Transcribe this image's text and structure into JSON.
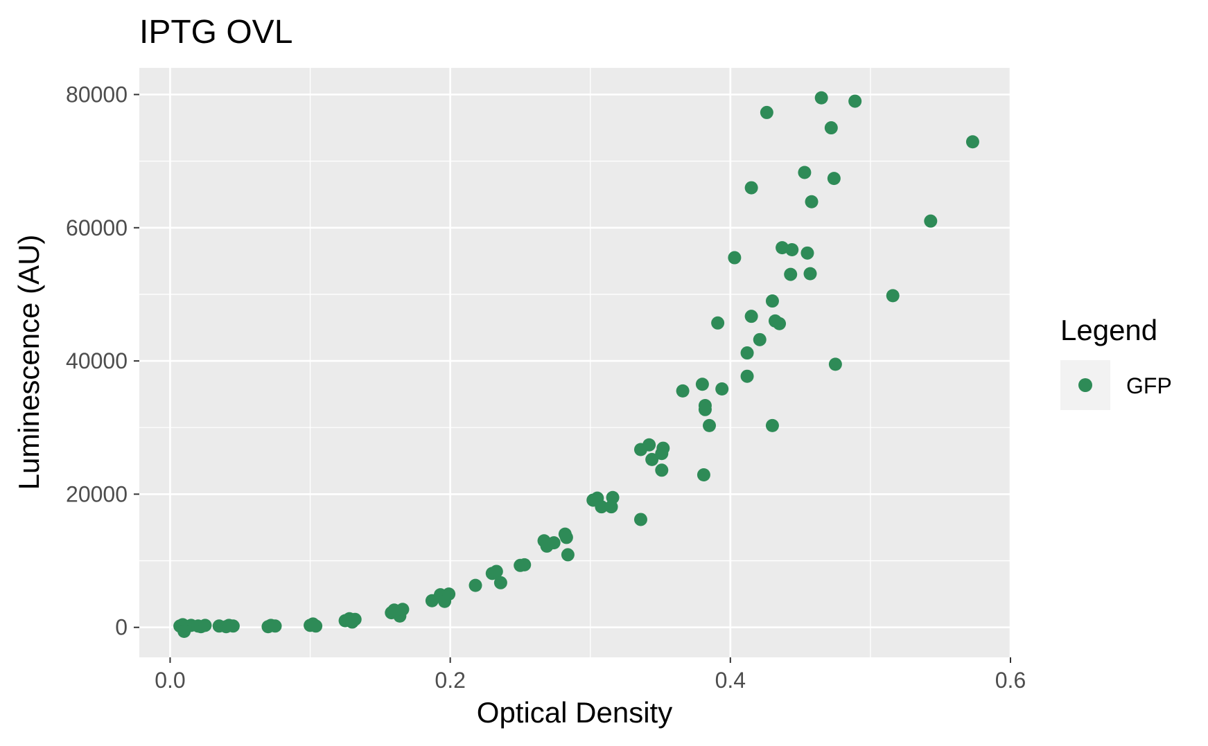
{
  "chart_data": {
    "type": "scatter",
    "title": "IPTG OVL",
    "xlabel": "Optical Density",
    "ylabel": "Luminescence (AU)",
    "xlim": [
      -0.022,
      0.6
    ],
    "ylim": [
      -4500,
      84000
    ],
    "x_ticks": [
      0.0,
      0.2,
      0.4,
      0.6
    ],
    "x_tick_labels": [
      "0.0",
      "0.2",
      "0.4",
      "0.6"
    ],
    "y_ticks": [
      0,
      20000,
      40000,
      60000,
      80000
    ],
    "y_tick_labels": [
      "0",
      "20000",
      "40000",
      "60000",
      "80000"
    ],
    "grid": true,
    "legend": {
      "title": "Legend",
      "position": "right"
    },
    "series": [
      {
        "name": "GFP",
        "color": "#2e8b57",
        "points": [
          [
            0.007,
            200
          ],
          [
            0.009,
            400
          ],
          [
            0.012,
            100
          ],
          [
            0.015,
            300
          ],
          [
            0.01,
            -600
          ],
          [
            0.02,
            200
          ],
          [
            0.022,
            100
          ],
          [
            0.025,
            300
          ],
          [
            0.035,
            200
          ],
          [
            0.04,
            100
          ],
          [
            0.042,
            300
          ],
          [
            0.045,
            200
          ],
          [
            0.07,
            100
          ],
          [
            0.072,
            300
          ],
          [
            0.075,
            200
          ],
          [
            0.1,
            300
          ],
          [
            0.102,
            500
          ],
          [
            0.104,
            200
          ],
          [
            0.125,
            1000
          ],
          [
            0.128,
            1300
          ],
          [
            0.13,
            800
          ],
          [
            0.132,
            1200
          ],
          [
            0.158,
            2200
          ],
          [
            0.16,
            2600
          ],
          [
            0.164,
            1700
          ],
          [
            0.166,
            2700
          ],
          [
            0.187,
            4000
          ],
          [
            0.193,
            4900
          ],
          [
            0.196,
            3900
          ],
          [
            0.199,
            5000
          ],
          [
            0.218,
            6300
          ],
          [
            0.23,
            8100
          ],
          [
            0.233,
            8400
          ],
          [
            0.236,
            6700
          ],
          [
            0.25,
            9300
          ],
          [
            0.253,
            9400
          ],
          [
            0.267,
            13000
          ],
          [
            0.269,
            12200
          ],
          [
            0.274,
            12700
          ],
          [
            0.282,
            14000
          ],
          [
            0.283,
            13500
          ],
          [
            0.284,
            10900
          ],
          [
            0.302,
            19100
          ],
          [
            0.305,
            19400
          ],
          [
            0.308,
            18100
          ],
          [
            0.315,
            18100
          ],
          [
            0.316,
            19500
          ],
          [
            0.336,
            26700
          ],
          [
            0.336,
            16200
          ],
          [
            0.342,
            27400
          ],
          [
            0.344,
            25200
          ],
          [
            0.351,
            26100
          ],
          [
            0.352,
            26900
          ],
          [
            0.351,
            23600
          ],
          [
            0.366,
            35500
          ],
          [
            0.38,
            36500
          ],
          [
            0.382,
            33300
          ],
          [
            0.382,
            32700
          ],
          [
            0.381,
            22900
          ],
          [
            0.385,
            30300
          ],
          [
            0.391,
            45700
          ],
          [
            0.394,
            35800
          ],
          [
            0.403,
            55500
          ],
          [
            0.412,
            41200
          ],
          [
            0.412,
            37700
          ],
          [
            0.415,
            46700
          ],
          [
            0.415,
            66000
          ],
          [
            0.421,
            43200
          ],
          [
            0.426,
            77300
          ],
          [
            0.43,
            49000
          ],
          [
            0.43,
            30300
          ],
          [
            0.432,
            46000
          ],
          [
            0.435,
            45600
          ],
          [
            0.437,
            57000
          ],
          [
            0.443,
            53000
          ],
          [
            0.444,
            56700
          ],
          [
            0.453,
            68300
          ],
          [
            0.455,
            56200
          ],
          [
            0.457,
            53100
          ],
          [
            0.458,
            63900
          ],
          [
            0.465,
            79500
          ],
          [
            0.472,
            75000
          ],
          [
            0.474,
            67400
          ],
          [
            0.475,
            39500
          ],
          [
            0.489,
            79000
          ],
          [
            0.516,
            49800
          ],
          [
            0.543,
            61000
          ],
          [
            0.573,
            72900
          ]
        ]
      }
    ]
  }
}
